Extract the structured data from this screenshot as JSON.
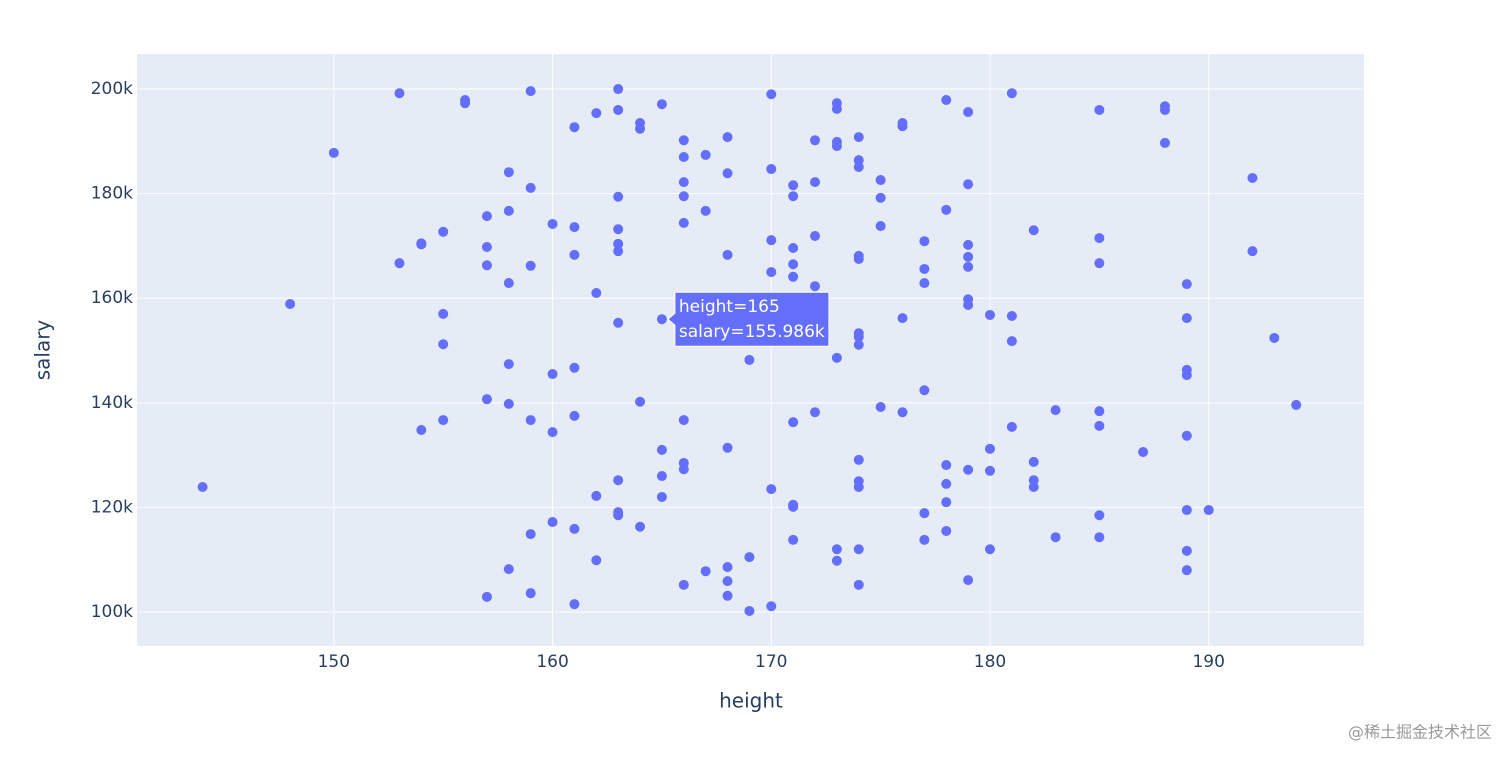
{
  "chart_data": {
    "type": "scatter",
    "xlabel": "height",
    "ylabel": "salary",
    "xlim": [
      141,
      197.1
    ],
    "ylim": [
      93500,
      206700
    ],
    "xticks": [
      150,
      160,
      170,
      180,
      190
    ],
    "yticks": [
      {
        "value": 100000,
        "label": "100k"
      },
      {
        "value": 120000,
        "label": "120k"
      },
      {
        "value": 140000,
        "label": "140k"
      },
      {
        "value": 160000,
        "label": "160k"
      },
      {
        "value": 180000,
        "label": "180k"
      },
      {
        "value": 200000,
        "label": "200k"
      }
    ],
    "grid": true,
    "background": "#e5ecf6",
    "color": "#636efa",
    "x": [
      144,
      148,
      150,
      153,
      153,
      154,
      154,
      154,
      155,
      155,
      155,
      155,
      156,
      156,
      157,
      157,
      157,
      157,
      157,
      158,
      158,
      158,
      158,
      158,
      158,
      159,
      159,
      159,
      159,
      159,
      159,
      160,
      160,
      160,
      160,
      161,
      161,
      161,
      161,
      161,
      161,
      161,
      162,
      162,
      162,
      162,
      163,
      163,
      163,
      163,
      163,
      163,
      163,
      163,
      163,
      163,
      164,
      164,
      164,
      164,
      165,
      165,
      165,
      165,
      165,
      166,
      166,
      166,
      166,
      166,
      166,
      166,
      166,
      166,
      167,
      167,
      167,
      168,
      168,
      168,
      168,
      168,
      168,
      168,
      169,
      169,
      169,
      170,
      170,
      170,
      170,
      170,
      170,
      171,
      171,
      171,
      171,
      171,
      171,
      171,
      171,
      171,
      172,
      172,
      172,
      172,
      172,
      173,
      173,
      173,
      173,
      173,
      173,
      173,
      174,
      174,
      174,
      174,
      174,
      174,
      174,
      174,
      174,
      174,
      174,
      174,
      174,
      175,
      175,
      175,
      175,
      176,
      176,
      176,
      176,
      177,
      177,
      177,
      177,
      177,
      177,
      178,
      178,
      178,
      178,
      178,
      178,
      179,
      179,
      179,
      179,
      179,
      179,
      179,
      179,
      179,
      180,
      180,
      180,
      180,
      181,
      181,
      181,
      181,
      182,
      182,
      182,
      182,
      183,
      183,
      185,
      185,
      185,
      185,
      185,
      185,
      185,
      187,
      188,
      188,
      188,
      189,
      189,
      189,
      189,
      189,
      189,
      189,
      189,
      190,
      192,
      192,
      193,
      194
    ],
    "values": [
      123900,
      158900,
      187800,
      199200,
      166700,
      170500,
      170300,
      134800,
      172700,
      157000,
      151200,
      136700,
      197900,
      197300,
      175700,
      169800,
      166300,
      140700,
      102900,
      184100,
      176700,
      162900,
      147400,
      139800,
      108200,
      199600,
      181100,
      166200,
      136700,
      114900,
      103600,
      174200,
      145500,
      134400,
      117200,
      192700,
      173600,
      168300,
      146700,
      137500,
      115900,
      101500,
      195400,
      161000,
      122200,
      109900,
      200000,
      196000,
      179400,
      173200,
      170400,
      169000,
      155300,
      125200,
      119100,
      118500,
      193500,
      192400,
      140200,
      116300,
      197100,
      155986,
      131000,
      126000,
      122000,
      190200,
      187000,
      182200,
      179500,
      174400,
      136700,
      128500,
      127300,
      105200,
      187400,
      176700,
      107800,
      190800,
      183900,
      168300,
      131400,
      108600,
      105900,
      103100,
      148200,
      110500,
      100200,
      199000,
      184700,
      171100,
      165000,
      123500,
      101100,
      181600,
      179500,
      169600,
      166500,
      164100,
      136300,
      120500,
      120100,
      113800,
      190200,
      182200,
      171900,
      162300,
      138200,
      197300,
      196200,
      189900,
      189100,
      148600,
      112000,
      109800,
      190800,
      186400,
      185100,
      168100,
      167500,
      153300,
      152600,
      151100,
      129100,
      125000,
      123900,
      112000,
      105200,
      182600,
      179200,
      173800,
      139200,
      193500,
      192900,
      156200,
      138200,
      170900,
      165600,
      162900,
      142400,
      118900,
      113800,
      197900,
      176900,
      128100,
      124500,
      121000,
      115500,
      195600,
      181800,
      170200,
      167900,
      166000,
      159800,
      158700,
      127200,
      106100,
      156800,
      131200,
      127000,
      112000,
      199200,
      156600,
      151800,
      135400,
      173000,
      128700,
      125200,
      123900,
      138600,
      114300,
      196000,
      171500,
      166700,
      138400,
      135600,
      118500,
      114300,
      130600,
      196700,
      196000,
      189700,
      162700,
      156200,
      146300,
      145300,
      133700,
      119500,
      111700,
      108000,
      119500,
      183000,
      169000,
      152400,
      139600
    ],
    "tooltip": [
      "height=165",
      "salary=155.986k"
    ]
  },
  "watermark": "@稀土掘金技术社区"
}
